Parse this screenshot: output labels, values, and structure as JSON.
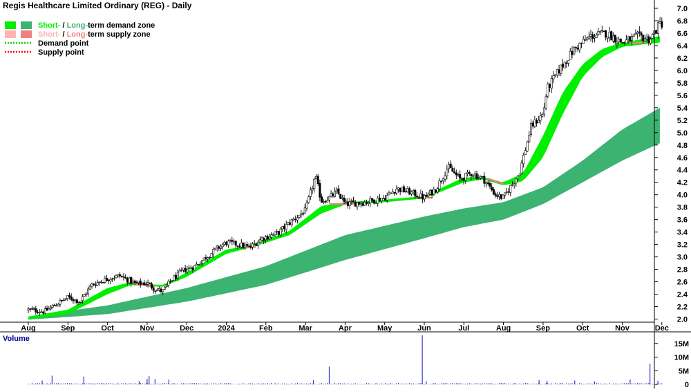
{
  "chart_data": [
    {
      "type": "candlestick",
      "title": "Regis Healthcare Limited Ordinary (REG) - Daily",
      "legend": {
        "placement": "top-left",
        "demand_zone": {
          "short_label": "Short-",
          "sep": " / ",
          "long_label": "Long-",
          "rest": "term demand zone"
        },
        "supply_zone": {
          "short_label": "Short-",
          "sep": " / ",
          "long_label": "Long-",
          "rest": "term supply zone"
        },
        "demand_point": "Demand point",
        "supply_point": "Supply point"
      },
      "colors": {
        "short_demand": "#00ee00",
        "long_demand": "#3cb371",
        "short_supply": "#ffb3b3",
        "long_supply": "#f08080",
        "demand_point": "#00cc00",
        "supply_point": "#ff0000",
        "candle": "#000000",
        "axis": "#000000",
        "volume_bar": "#3333cc",
        "volume_title": "#000099"
      },
      "x_ticks": [
        "Aug",
        "Sep",
        "Oct",
        "Nov",
        "Dec",
        "2024",
        "Feb",
        "Mar",
        "Apr",
        "May",
        "Jun",
        "Jul",
        "Aug",
        "Sep",
        "Oct",
        "Nov",
        "Dec"
      ],
      "y_ticks": [
        "2.0",
        "2.2",
        "2.4",
        "2.6",
        "2.8",
        "3.0",
        "3.2",
        "3.4",
        "3.6",
        "3.8",
        "4.0",
        "4.2",
        "4.4",
        "4.6",
        "4.8",
        "5.0",
        "5.2",
        "5.4",
        "5.6",
        "5.8",
        "6.0",
        "6.2",
        "6.4",
        "6.6",
        "6.8",
        "7.0"
      ],
      "ylim": [
        1.95,
        7.0
      ],
      "price_keypoints": [
        {
          "t": 0.0,
          "p": 2.15
        },
        {
          "t": 0.4,
          "p": 2.12
        },
        {
          "t": 1.0,
          "p": 2.35
        },
        {
          "t": 1.3,
          "p": 2.28
        },
        {
          "t": 1.6,
          "p": 2.55
        },
        {
          "t": 2.0,
          "p": 2.65
        },
        {
          "t": 2.3,
          "p": 2.7
        },
        {
          "t": 2.7,
          "p": 2.57
        },
        {
          "t": 3.0,
          "p": 2.58
        },
        {
          "t": 3.2,
          "p": 2.48
        },
        {
          "t": 3.4,
          "p": 2.45
        },
        {
          "t": 3.6,
          "p": 2.62
        },
        {
          "t": 3.9,
          "p": 2.78
        },
        {
          "t": 4.2,
          "p": 2.85
        },
        {
          "t": 4.5,
          "p": 3.0
        },
        {
          "t": 4.8,
          "p": 3.15
        },
        {
          "t": 5.0,
          "p": 3.23
        },
        {
          "t": 5.3,
          "p": 3.2
        },
        {
          "t": 5.6,
          "p": 3.15
        },
        {
          "t": 5.9,
          "p": 3.3
        },
        {
          "t": 6.3,
          "p": 3.38
        },
        {
          "t": 6.6,
          "p": 3.55
        },
        {
          "t": 7.0,
          "p": 3.75
        },
        {
          "t": 7.25,
          "p": 4.3
        },
        {
          "t": 7.4,
          "p": 3.9
        },
        {
          "t": 7.6,
          "p": 3.95
        },
        {
          "t": 7.8,
          "p": 4.05
        },
        {
          "t": 8.0,
          "p": 3.85
        },
        {
          "t": 8.5,
          "p": 3.88
        },
        {
          "t": 9.0,
          "p": 3.95
        },
        {
          "t": 9.3,
          "p": 4.1
        },
        {
          "t": 9.6,
          "p": 4.05
        },
        {
          "t": 10.0,
          "p": 3.95
        },
        {
          "t": 10.3,
          "p": 4.1
        },
        {
          "t": 10.6,
          "p": 4.45
        },
        {
          "t": 10.9,
          "p": 4.25
        },
        {
          "t": 11.2,
          "p": 4.35
        },
        {
          "t": 11.5,
          "p": 4.25
        },
        {
          "t": 11.8,
          "p": 4.0
        },
        {
          "t": 12.0,
          "p": 3.95
        },
        {
          "t": 12.2,
          "p": 4.15
        },
        {
          "t": 12.4,
          "p": 4.35
        },
        {
          "t": 12.7,
          "p": 5.1
        },
        {
          "t": 13.0,
          "p": 5.3
        },
        {
          "t": 13.1,
          "p": 5.7
        },
        {
          "t": 13.4,
          "p": 6.0
        },
        {
          "t": 13.8,
          "p": 6.35
        },
        {
          "t": 14.2,
          "p": 6.55
        },
        {
          "t": 14.6,
          "p": 6.6
        },
        {
          "t": 15.0,
          "p": 6.45
        },
        {
          "t": 15.4,
          "p": 6.55
        },
        {
          "t": 15.7,
          "p": 6.5
        },
        {
          "t": 15.95,
          "p": 6.75
        }
      ],
      "short_demand_zone": {
        "top": [
          {
            "t": 0.0,
            "p": 2.04
          },
          {
            "t": 1.0,
            "p": 2.15
          },
          {
            "t": 2.0,
            "p": 2.5
          },
          {
            "t": 2.6,
            "p": 2.6
          },
          {
            "t": 3.0,
            "p": 2.56
          },
          {
            "t": 3.4,
            "p": 2.55
          },
          {
            "t": 4.0,
            "p": 2.75
          },
          {
            "t": 5.0,
            "p": 3.12
          },
          {
            "t": 5.6,
            "p": 3.18
          },
          {
            "t": 6.6,
            "p": 3.42
          },
          {
            "t": 7.4,
            "p": 3.82
          },
          {
            "t": 8.0,
            "p": 3.88
          },
          {
            "t": 9.0,
            "p": 3.92
          },
          {
            "t": 10.0,
            "p": 3.98
          },
          {
            "t": 11.0,
            "p": 4.28
          },
          {
            "t": 11.5,
            "p": 4.28
          },
          {
            "t": 12.0,
            "p": 4.2
          },
          {
            "t": 12.5,
            "p": 4.35
          },
          {
            "t": 13.0,
            "p": 4.95
          },
          {
            "t": 13.5,
            "p": 5.65
          },
          {
            "t": 14.0,
            "p": 6.1
          },
          {
            "t": 14.5,
            "p": 6.35
          },
          {
            "t": 15.0,
            "p": 6.45
          },
          {
            "t": 15.95,
            "p": 6.55
          }
        ],
        "bottom": [
          {
            "t": 0.0,
            "p": 2.0
          },
          {
            "t": 1.0,
            "p": 2.08
          },
          {
            "t": 2.0,
            "p": 2.4
          },
          {
            "t": 2.6,
            "p": 2.55
          },
          {
            "t": 3.0,
            "p": 2.53
          },
          {
            "t": 3.4,
            "p": 2.52
          },
          {
            "t": 4.0,
            "p": 2.68
          },
          {
            "t": 5.0,
            "p": 3.05
          },
          {
            "t": 5.6,
            "p": 3.15
          },
          {
            "t": 6.6,
            "p": 3.35
          },
          {
            "t": 7.4,
            "p": 3.7
          },
          {
            "t": 8.0,
            "p": 3.84
          },
          {
            "t": 9.0,
            "p": 3.88
          },
          {
            "t": 10.0,
            "p": 3.94
          },
          {
            "t": 11.0,
            "p": 4.2
          },
          {
            "t": 11.5,
            "p": 4.25
          },
          {
            "t": 12.0,
            "p": 4.15
          },
          {
            "t": 12.5,
            "p": 4.22
          },
          {
            "t": 13.0,
            "p": 4.6
          },
          {
            "t": 13.5,
            "p": 5.3
          },
          {
            "t": 14.0,
            "p": 5.9
          },
          {
            "t": 14.5,
            "p": 6.22
          },
          {
            "t": 15.0,
            "p": 6.38
          },
          {
            "t": 15.95,
            "p": 6.45
          }
        ]
      },
      "long_demand_zone": {
        "top": [
          {
            "t": 0.0,
            "p": 2.04
          },
          {
            "t": 2.0,
            "p": 2.22
          },
          {
            "t": 4.0,
            "p": 2.5
          },
          {
            "t": 6.0,
            "p": 2.85
          },
          {
            "t": 8.0,
            "p": 3.35
          },
          {
            "t": 10.0,
            "p": 3.65
          },
          {
            "t": 11.0,
            "p": 3.78
          },
          {
            "t": 12.0,
            "p": 3.88
          },
          {
            "t": 13.0,
            "p": 4.12
          },
          {
            "t": 14.0,
            "p": 4.55
          },
          {
            "t": 15.0,
            "p": 5.05
          },
          {
            "t": 15.95,
            "p": 5.4
          }
        ],
        "bottom": [
          {
            "t": 0.0,
            "p": 1.99
          },
          {
            "t": 2.0,
            "p": 2.08
          },
          {
            "t": 4.0,
            "p": 2.28
          },
          {
            "t": 6.0,
            "p": 2.55
          },
          {
            "t": 8.0,
            "p": 2.95
          },
          {
            "t": 10.0,
            "p": 3.3
          },
          {
            "t": 11.0,
            "p": 3.48
          },
          {
            "t": 12.0,
            "p": 3.6
          },
          {
            "t": 13.0,
            "p": 3.85
          },
          {
            "t": 14.0,
            "p": 4.2
          },
          {
            "t": 15.0,
            "p": 4.55
          },
          {
            "t": 15.95,
            "p": 4.83
          }
        ]
      },
      "short_supply_segments": [
        {
          "t0": 2.6,
          "t1": 3.2,
          "p0": 2.58,
          "p1": 2.52
        },
        {
          "t0": 5.45,
          "t1": 5.75,
          "p0": 3.15,
          "p1": 3.16
        },
        {
          "t0": 7.6,
          "t1": 8.4,
          "p0": 3.85,
          "p1": 3.86
        },
        {
          "t0": 9.8,
          "t1": 10.2,
          "p0": 3.96,
          "p1": 3.95
        },
        {
          "t0": 11.6,
          "t1": 12.0,
          "p0": 4.26,
          "p1": 4.18
        },
        {
          "t0": 15.2,
          "t1": 15.6,
          "p0": 6.43,
          "p1": 6.46
        }
      ],
      "volume": {
        "title": "Volume",
        "y_ticks": [
          "15M",
          "10M",
          "5M",
          "0"
        ],
        "ylim": [
          0,
          18
        ],
        "baseline_millions": 0.35,
        "spikes": [
          {
            "t": 0.35,
            "v": 1.4
          },
          {
            "t": 0.6,
            "v": 3.2
          },
          {
            "t": 1.4,
            "v": 2.9
          },
          {
            "t": 2.8,
            "v": 1.2
          },
          {
            "t": 3.0,
            "v": 2.0
          },
          {
            "t": 3.05,
            "v": 3.0
          },
          {
            "t": 3.2,
            "v": 2.0
          },
          {
            "t": 3.55,
            "v": 1.8
          },
          {
            "t": 7.2,
            "v": 1.6
          },
          {
            "t": 7.6,
            "v": 6.5
          },
          {
            "t": 9.95,
            "v": 18.5
          },
          {
            "t": 10.05,
            "v": 1.2
          },
          {
            "t": 12.9,
            "v": 1.6
          },
          {
            "t": 13.1,
            "v": 1.3
          },
          {
            "t": 13.8,
            "v": 1.4
          },
          {
            "t": 14.3,
            "v": 1.1
          },
          {
            "t": 15.2,
            "v": 1.8
          },
          {
            "t": 15.7,
            "v": 7.6
          },
          {
            "t": 15.9,
            "v": 1.3
          }
        ]
      }
    }
  ]
}
